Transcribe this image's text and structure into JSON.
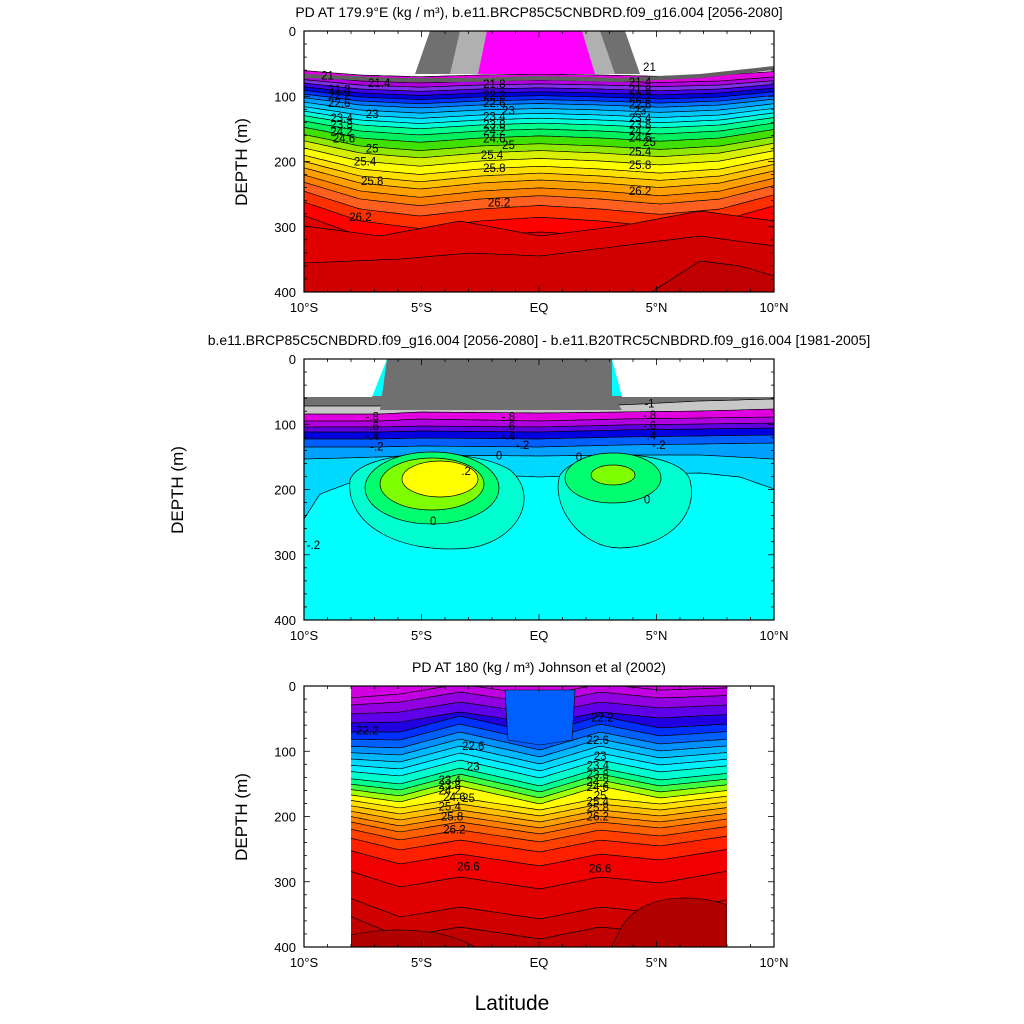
{
  "panels": [
    {
      "id": "panel1",
      "title": "PD AT 179.9°E (kg / m³), b.e11.BRCP85C5CNBDRD.f09_g16.004 [2056-2080]",
      "ylabel": "DEPTH (m)"
    },
    {
      "id": "panel2",
      "title": "b.e11.BRCP85C5CNBDRD.f09_g16.004 [2056-2080] - b.e11.B20TRC5CNBDRD.f09_g16.004 [1981-2005]",
      "ylabel": "DEPTH (m)"
    },
    {
      "id": "panel3",
      "title": "PD AT 180 (kg / m³) Johnson et al (2002)",
      "ylabel": "DEPTH (m)"
    }
  ],
  "xlabel": "Latitude",
  "chart_data": [
    {
      "type": "contour",
      "title": "PD AT 179.9°E (kg / m³), b.e11.BRCP85C5CNBDRD.f09_g16.004 [2056-2080]",
      "xlabel": "Latitude",
      "ylabel": "DEPTH (m)",
      "xlim": [
        -10,
        10
      ],
      "ylim": [
        400,
        0
      ],
      "xticks": [
        -10,
        -5,
        0,
        5,
        10
      ],
      "xtick_labels": [
        "10°S",
        "5°S",
        "EQ",
        "5°N",
        "10°N"
      ],
      "yticks": [
        0,
        100,
        200,
        300,
        400
      ],
      "ytick_labels": [
        "0",
        "100",
        "200",
        "300",
        "400"
      ],
      "contour_labels": [
        "21",
        "21.4",
        "21.8",
        "22.2",
        "22.6",
        "23",
        "23.4",
        "23.8",
        "24.2",
        "24.6",
        "25",
        "25.4",
        "25.8",
        "26.2"
      ],
      "label_list": [
        {
          "t": "21",
          "lat": -9.0,
          "d": 68
        },
        {
          "t": "21.4",
          "lat": -6.8,
          "d": 80
        },
        {
          "t": "21.8",
          "lat": -8.5,
          "d": 90
        },
        {
          "t": "22.2",
          "lat": -8.5,
          "d": 99
        },
        {
          "t": "22.6",
          "lat": -8.5,
          "d": 110
        },
        {
          "t": "23",
          "lat": -7.1,
          "d": 127
        },
        {
          "t": "23.4",
          "lat": -8.4,
          "d": 133
        },
        {
          "t": "23.8",
          "lat": -8.4,
          "d": 143
        },
        {
          "t": "24.2",
          "lat": -8.4,
          "d": 154
        },
        {
          "t": "24.6",
          "lat": -8.3,
          "d": 165
        },
        {
          "t": "25",
          "lat": -7.1,
          "d": 180
        },
        {
          "t": "25.4",
          "lat": -7.4,
          "d": 200
        },
        {
          "t": "25.8",
          "lat": -7.1,
          "d": 230
        },
        {
          "t": "26.2",
          "lat": -7.6,
          "d": 285
        },
        {
          "t": "21.8",
          "lat": -1.9,
          "d": 81
        },
        {
          "t": "22.2",
          "lat": -1.9,
          "d": 98
        },
        {
          "t": "22.6",
          "lat": -1.9,
          "d": 110
        },
        {
          "t": "23",
          "lat": -1.3,
          "d": 122
        },
        {
          "t": "23.4",
          "lat": -1.9,
          "d": 131
        },
        {
          "t": "23.8",
          "lat": -1.9,
          "d": 143
        },
        {
          "t": "24.2",
          "lat": -1.9,
          "d": 153
        },
        {
          "t": "24.6",
          "lat": -1.9,
          "d": 165
        },
        {
          "t": "25",
          "lat": -1.3,
          "d": 175
        },
        {
          "t": "25.4",
          "lat": -2.0,
          "d": 190
        },
        {
          "t": "25.8",
          "lat": -1.9,
          "d": 210
        },
        {
          "t": "26.2",
          "lat": -1.7,
          "d": 263
        },
        {
          "t": "21",
          "lat": 4.7,
          "d": 55
        },
        {
          "t": "21.4",
          "lat": 4.3,
          "d": 78
        },
        {
          "t": "21.8",
          "lat": 4.3,
          "d": 90
        },
        {
          "t": "22.2",
          "lat": 4.3,
          "d": 101
        },
        {
          "t": "22.6",
          "lat": 4.3,
          "d": 113
        },
        {
          "t": "23",
          "lat": 4.3,
          "d": 122
        },
        {
          "t": "23.4",
          "lat": 4.3,
          "d": 133
        },
        {
          "t": "23.8",
          "lat": 4.3,
          "d": 143
        },
        {
          "t": "24.2",
          "lat": 4.3,
          "d": 153
        },
        {
          "t": "24.6",
          "lat": 4.3,
          "d": 163
        },
        {
          "t": "25",
          "lat": 4.7,
          "d": 170
        },
        {
          "t": "25.4",
          "lat": 4.3,
          "d": 185
        },
        {
          "t": "25.8",
          "lat": 4.3,
          "d": 205
        },
        {
          "t": "26.2",
          "lat": 4.3,
          "d": 245
        }
      ]
    },
    {
      "type": "contour",
      "title": "b.e11.BRCP85C5CNBDRD.f09_g16.004 [2056-2080] - b.e11.B20TRC5CNBDRD.f09_g16.004 [1981-2005]",
      "xlabel": "Latitude",
      "ylabel": "DEPTH (m)",
      "xlim": [
        -10,
        10
      ],
      "ylim": [
        400,
        0
      ],
      "xticks": [
        -10,
        -5,
        0,
        5,
        10
      ],
      "xtick_labels": [
        "10°S",
        "5°S",
        "EQ",
        "5°N",
        "10°N"
      ],
      "yticks": [
        0,
        100,
        200,
        300,
        400
      ],
      "ytick_labels": [
        "0",
        "100",
        "200",
        "300",
        "400"
      ],
      "contour_labels": [
        "-1",
        "-.8",
        "-.6",
        "-.4",
        "-.2",
        "0",
        ".2"
      ],
      "label_list": [
        {
          "t": "-.8",
          "lat": -7.1,
          "d": 88
        },
        {
          "t": "-.6",
          "lat": -7.1,
          "d": 103
        },
        {
          "t": "-.4",
          "lat": -7.1,
          "d": 118
        },
        {
          "t": "-.2",
          "lat": -6.9,
          "d": 134
        },
        {
          "t": "-.8",
          "lat": -1.3,
          "d": 88
        },
        {
          "t": "-.6",
          "lat": -1.3,
          "d": 103
        },
        {
          "t": "-.4",
          "lat": -1.3,
          "d": 118
        },
        {
          "t": "-.2",
          "lat": -0.7,
          "d": 132
        },
        {
          "t": "0",
          "lat": -1.7,
          "d": 148
        },
        {
          "t": ".2",
          "lat": -3.1,
          "d": 172
        },
        {
          "t": "0",
          "lat": 1.7,
          "d": 150
        },
        {
          "t": "-1",
          "lat": 4.7,
          "d": 68
        },
        {
          "t": "-.8",
          "lat": 4.7,
          "d": 86
        },
        {
          "t": "-.6",
          "lat": 4.7,
          "d": 102
        },
        {
          "t": "-.4",
          "lat": 4.7,
          "d": 117
        },
        {
          "t": "-.2",
          "lat": 5.1,
          "d": 132
        },
        {
          "t": "0",
          "lat": 4.6,
          "d": 215
        },
        {
          "t": "0",
          "lat": -4.5,
          "d": 248
        },
        {
          "t": "-.2",
          "lat": -9.6,
          "d": 285
        }
      ]
    },
    {
      "type": "contour",
      "title": "PD AT 180 (kg / m³) Johnson et al (2002)",
      "xlabel": "Latitude",
      "ylabel": "DEPTH (m)",
      "xlim": [
        -10,
        10
      ],
      "ylim": [
        400,
        0
      ],
      "xticks": [
        -10,
        -5,
        0,
        5,
        10
      ],
      "xtick_labels": [
        "10°S",
        "5°S",
        "EQ",
        "5°N",
        "10°N"
      ],
      "yticks": [
        0,
        100,
        200,
        300,
        400
      ],
      "ytick_labels": [
        "0",
        "100",
        "200",
        "300",
        "400"
      ],
      "data_lat_range": [
        -8,
        8
      ],
      "contour_labels": [
        "22.2",
        "22.6",
        "23",
        "23.4",
        "23.8",
        "24.2",
        "24.6",
        "25",
        "25.4",
        "25.8",
        "26.2",
        "26.6"
      ],
      "label_list": [
        {
          "t": "22.2",
          "lat": -7.3,
          "d": 68
        },
        {
          "t": "22.6",
          "lat": -2.8,
          "d": 92
        },
        {
          "t": "23",
          "lat": -2.8,
          "d": 123
        },
        {
          "t": "23.4",
          "lat": -3.8,
          "d": 144
        },
        {
          "t": "23.8",
          "lat": -3.8,
          "d": 152
        },
        {
          "t": "24.2",
          "lat": -3.8,
          "d": 160
        },
        {
          "t": "24.6",
          "lat": -3.6,
          "d": 170
        },
        {
          "t": "25",
          "lat": -3.0,
          "d": 172
        },
        {
          "t": "25.4",
          "lat": -3.8,
          "d": 185
        },
        {
          "t": "25.8",
          "lat": -3.7,
          "d": 200
        },
        {
          "t": "26.2",
          "lat": -3.6,
          "d": 220
        },
        {
          "t": "26.6",
          "lat": -3.0,
          "d": 277
        },
        {
          "t": "22.2",
          "lat": 2.7,
          "d": 48
        },
        {
          "t": "22.6",
          "lat": 2.5,
          "d": 83
        },
        {
          "t": "23",
          "lat": 2.6,
          "d": 107
        },
        {
          "t": "23.4",
          "lat": 2.5,
          "d": 122
        },
        {
          "t": "23.8",
          "lat": 2.5,
          "d": 136
        },
        {
          "t": "24.2",
          "lat": 2.5,
          "d": 147
        },
        {
          "t": "24.6",
          "lat": 2.5,
          "d": 155
        },
        {
          "t": "25",
          "lat": 2.6,
          "d": 168
        },
        {
          "t": "25.4",
          "lat": 2.5,
          "d": 177
        },
        {
          "t": "25.8",
          "lat": 2.5,
          "d": 186
        },
        {
          "t": "26.2",
          "lat": 2.5,
          "d": 200
        },
        {
          "t": "26.6",
          "lat": 2.6,
          "d": 280
        }
      ]
    }
  ]
}
